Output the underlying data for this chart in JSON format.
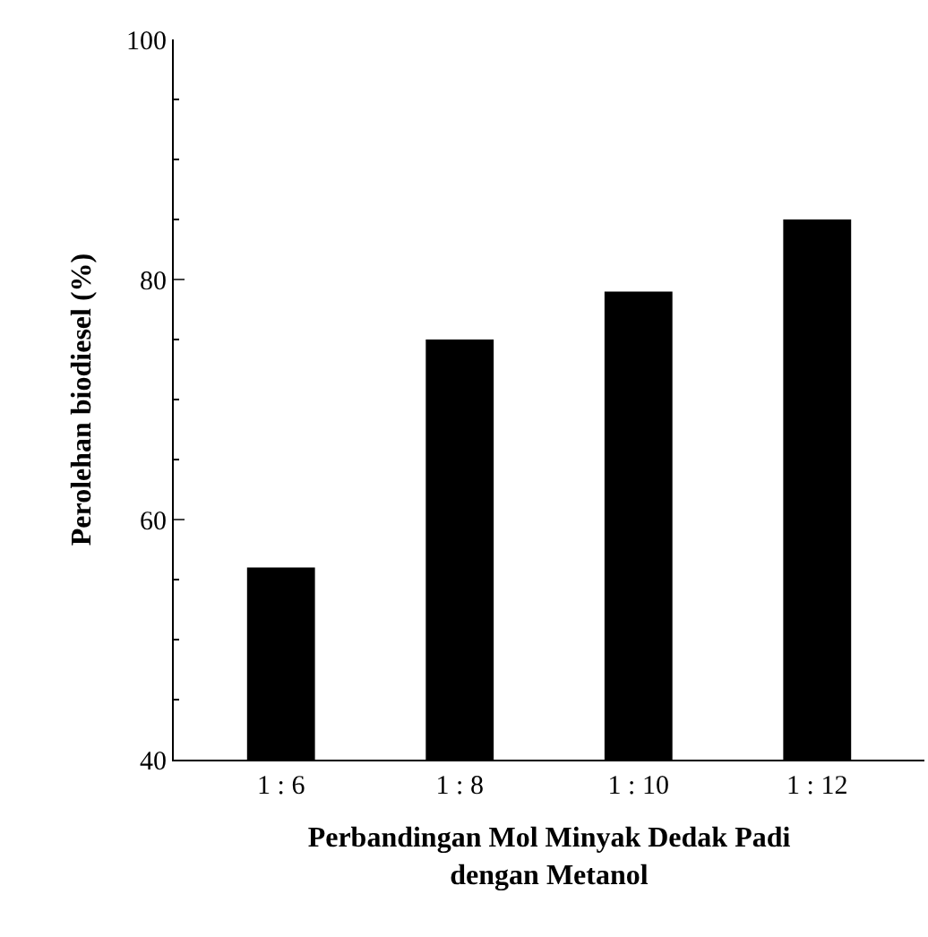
{
  "chart_data": {
    "type": "bar",
    "xlabel": "Perbandingan Mol Minyak Dedak Padi dengan Metanol",
    "ylabel": "Perolehan biodiesel (%)",
    "categories": [
      "1 : 6",
      "1 : 8",
      "1 : 10",
      "1 : 12"
    ],
    "values": [
      56,
      75,
      79,
      85
    ],
    "color": "#000000",
    "ylim": [
      40,
      100
    ],
    "yticks": [
      40,
      60,
      80,
      100
    ]
  }
}
